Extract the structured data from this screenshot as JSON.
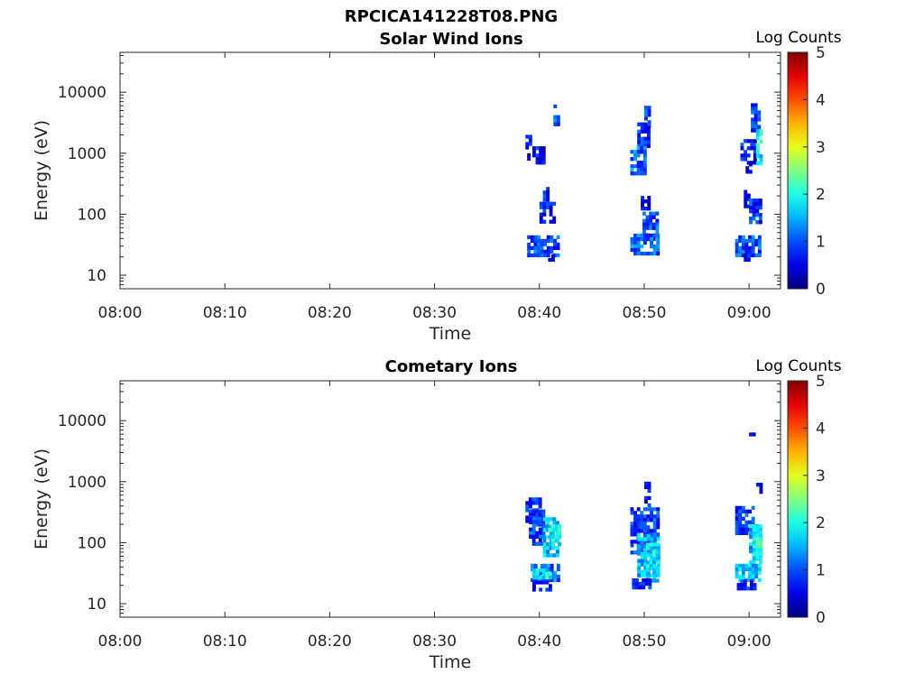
{
  "figure_title": "RPCICA141228T08.PNG",
  "chart_data": [
    {
      "type": "heatmap",
      "title": "Solar Wind Ions",
      "xlabel": "Time",
      "ylabel": "Energy (eV)",
      "x_ticks": [
        "08:00",
        "08:10",
        "08:20",
        "08:30",
        "08:40",
        "08:50",
        "09:00"
      ],
      "xlim": [
        "08:00",
        "09:03"
      ],
      "y_scale": "log",
      "y_ticks": [
        10,
        100,
        1000,
        10000
      ],
      "ylim": [
        6,
        45000
      ],
      "colorbar": {
        "label": "Log Counts",
        "range": [
          0,
          5
        ],
        "ticks": [
          0,
          1,
          2,
          3,
          4,
          5
        ],
        "colormap": "jet"
      },
      "blobs": [
        {
          "t": [
            "08:38:40",
            "08:39:10"
          ],
          "e": [
            1300,
            2000
          ],
          "v": 0.8
        },
        {
          "t": [
            "08:39:20",
            "08:40:30"
          ],
          "e": [
            700,
            1300
          ],
          "v": 0.6
        },
        {
          "t": [
            "08:38:50",
            "08:39:10"
          ],
          "e": [
            800,
            1000
          ],
          "v": 0.5
        },
        {
          "t": [
            "08:41:20",
            "08:41:40"
          ],
          "e": [
            3000,
            4200
          ],
          "v": 1.0
        },
        {
          "t": [
            "08:41:20",
            "08:41:30"
          ],
          "e": [
            5500,
            6300
          ],
          "v": 0.8
        },
        {
          "t": [
            "08:40:20",
            "08:40:40"
          ],
          "e": [
            180,
            280
          ],
          "v": 0.7
        },
        {
          "t": [
            "08:40:00",
            "08:41:20"
          ],
          "e": [
            80,
            160
          ],
          "v": 0.7
        },
        {
          "t": [
            "08:38:50",
            "08:41:50"
          ],
          "e": [
            22,
            45
          ],
          "v": 1.0
        },
        {
          "t": [
            "08:40:50",
            "08:41:10"
          ],
          "e": [
            18,
            22
          ],
          "v": 0.6
        },
        {
          "t": [
            "08:50:00",
            "08:50:30"
          ],
          "e": [
            3000,
            6000
          ],
          "v": 0.9
        },
        {
          "t": [
            "08:49:20",
            "08:50:30"
          ],
          "e": [
            1300,
            3200
          ],
          "v": 0.8
        },
        {
          "t": [
            "08:48:40",
            "08:50:10"
          ],
          "e": [
            450,
            1300
          ],
          "v": 1.1
        },
        {
          "t": [
            "08:49:40",
            "08:50:20"
          ],
          "e": [
            120,
            200
          ],
          "v": 0.6
        },
        {
          "t": [
            "08:49:50",
            "08:51:20"
          ],
          "e": [
            40,
            110
          ],
          "v": 1.0
        },
        {
          "t": [
            "08:48:40",
            "08:51:20"
          ],
          "e": [
            24,
            48
          ],
          "v": 1.1
        },
        {
          "t": [
            "08:59:10",
            "09:00:30"
          ],
          "e": [
            700,
            1700
          ],
          "v": 0.7
        },
        {
          "t": [
            "09:00:10",
            "09:01:00"
          ],
          "e": [
            2500,
            6600
          ],
          "v": 0.9
        },
        {
          "t": [
            "09:00:40",
            "09:01:00"
          ],
          "e": [
            700,
            2500
          ],
          "v": 1.8
        },
        {
          "t": [
            "08:59:40",
            "09:00:10"
          ],
          "e": [
            500,
            700
          ],
          "v": 0.5
        },
        {
          "t": [
            "08:59:30",
            "08:59:50"
          ],
          "e": [
            140,
            250
          ],
          "v": 0.6
        },
        {
          "t": [
            "09:00:00",
            "09:01:00"
          ],
          "e": [
            70,
            180
          ],
          "v": 0.8
        },
        {
          "t": [
            "08:58:40",
            "09:01:00"
          ],
          "e": [
            22,
            45
          ],
          "v": 1.0
        },
        {
          "t": [
            "08:59:30",
            "08:59:50"
          ],
          "e": [
            18,
            22
          ],
          "v": 0.6
        }
      ]
    },
    {
      "type": "heatmap",
      "title": "Cometary Ions",
      "xlabel": "Time",
      "ylabel": "Energy (eV)",
      "x_ticks": [
        "08:00",
        "08:10",
        "08:20",
        "08:30",
        "08:40",
        "08:50",
        "09:00"
      ],
      "xlim": [
        "08:00",
        "09:03"
      ],
      "y_scale": "log",
      "y_ticks": [
        10,
        100,
        1000,
        10000
      ],
      "ylim": [
        6,
        45000
      ],
      "colorbar": {
        "label": "Log Counts",
        "range": [
          0,
          5
        ],
        "ticks": [
          0,
          1,
          2,
          3,
          4,
          5
        ],
        "colormap": "jet"
      },
      "blobs": [
        {
          "t": [
            "08:38:40",
            "08:40:00"
          ],
          "e": [
            200,
            550
          ],
          "v": 0.8
        },
        {
          "t": [
            "08:39:00",
            "08:40:30"
          ],
          "e": [
            100,
            350
          ],
          "v": 0.9
        },
        {
          "t": [
            "08:40:20",
            "08:41:50"
          ],
          "e": [
            60,
            260
          ],
          "v": 1.6
        },
        {
          "t": [
            "08:40:50",
            "08:41:50"
          ],
          "e": [
            80,
            200
          ],
          "v": 1.9
        },
        {
          "t": [
            "08:39:10",
            "08:41:50"
          ],
          "e": [
            24,
            45
          ],
          "v": 1.1
        },
        {
          "t": [
            "08:39:20",
            "08:41:00"
          ],
          "e": [
            26,
            38
          ],
          "v": 1.8
        },
        {
          "t": [
            "08:39:20",
            "08:41:10"
          ],
          "e": [
            18,
            24
          ],
          "v": 0.7
        },
        {
          "t": [
            "08:48:40",
            "08:51:20"
          ],
          "e": [
            70,
            380
          ],
          "v": 0.9
        },
        {
          "t": [
            "08:49:20",
            "08:51:20"
          ],
          "e": [
            30,
            140
          ],
          "v": 1.5
        },
        {
          "t": [
            "08:50:10",
            "08:51:20"
          ],
          "e": [
            24,
            100
          ],
          "v": 1.8
        },
        {
          "t": [
            "08:50:00",
            "08:50:20"
          ],
          "e": [
            400,
            1000
          ],
          "v": 0.6
        },
        {
          "t": [
            "08:48:50",
            "08:50:30"
          ],
          "e": [
            18,
            26
          ],
          "v": 0.7
        },
        {
          "t": [
            "08:58:40",
            "09:00:30"
          ],
          "e": [
            150,
            400
          ],
          "v": 0.8
        },
        {
          "t": [
            "09:00:00",
            "09:01:00"
          ],
          "e": [
            45,
            200
          ],
          "v": 1.6
        },
        {
          "t": [
            "09:00:20",
            "09:01:00"
          ],
          "e": [
            60,
            140
          ],
          "v": 2.0
        },
        {
          "t": [
            "08:58:40",
            "09:01:00"
          ],
          "e": [
            25,
            45
          ],
          "v": 1.6
        },
        {
          "t": [
            "08:58:50",
            "09:00:40"
          ],
          "e": [
            18,
            25
          ],
          "v": 0.7
        },
        {
          "t": [
            "09:00:00",
            "09:00:30"
          ],
          "e": [
            5600,
            6400
          ],
          "v": 0.5
        },
        {
          "t": [
            "09:00:40",
            "09:01:00"
          ],
          "e": [
            700,
            1100
          ],
          "v": 0.7
        }
      ]
    }
  ]
}
